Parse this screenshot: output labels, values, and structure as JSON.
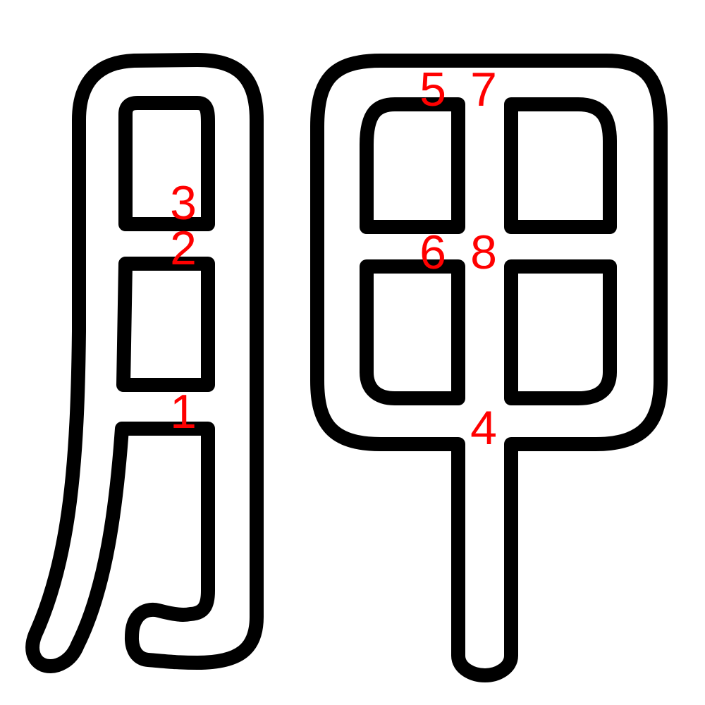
{
  "diagram": {
    "stroke_labels": [
      "1",
      "2",
      "3",
      "4",
      "5",
      "6",
      "7",
      "8"
    ],
    "colors": {
      "outline": "#000000",
      "fill": "#ffffff",
      "label": "#ff0000"
    }
  }
}
